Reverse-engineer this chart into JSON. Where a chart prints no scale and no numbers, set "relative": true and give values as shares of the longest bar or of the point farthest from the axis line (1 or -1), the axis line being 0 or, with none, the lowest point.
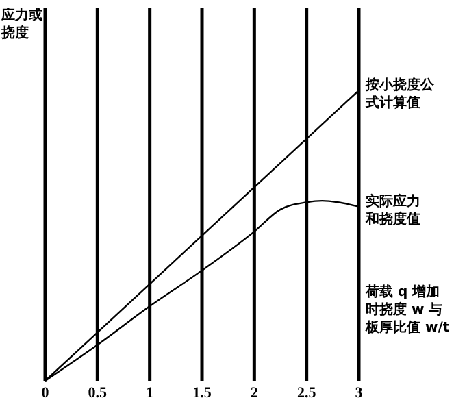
{
  "chart_data": {
    "type": "line",
    "relative": true,
    "ylabel": "应力或挠度",
    "xlabel": "荷载 q 增加时挠度 w 与板厚比值 w/t",
    "xlim": [
      0,
      3
    ],
    "xticks": [
      0,
      0.5,
      1,
      1.5,
      2,
      2.5,
      3
    ],
    "grid": "x",
    "marker": "none",
    "series": [
      {
        "name": "按小挠度公式计算值",
        "color": "#000000",
        "x": [
          0,
          3
        ],
        "values": [
          0,
          1
        ]
      },
      {
        "name": "实际应力和挠度值",
        "color": "#000000",
        "x": [
          0,
          0.5,
          1,
          1.5,
          2,
          2.25,
          2.5,
          2.65,
          2.8,
          3
        ],
        "values": [
          0,
          0.124,
          0.257,
          0.38,
          0.514,
          0.59,
          0.615,
          0.62,
          0.615,
          0.6
        ]
      }
    ]
  }
}
